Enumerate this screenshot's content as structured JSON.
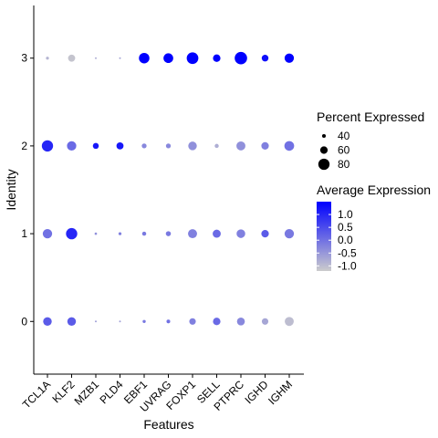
{
  "chart_data": {
    "type": "dotplot",
    "xlabel": "Features",
    "ylabel": "Identity",
    "features": [
      "TCL1A",
      "KLF2",
      "MZB1",
      "PLD4",
      "EBF1",
      "UVRAG",
      "FOXP1",
      "SELL",
      "PTPRC",
      "IGHD",
      "IGHM"
    ],
    "identities": [
      "0",
      "1",
      "2",
      "3"
    ],
    "ylim": [
      -0.6,
      3.6
    ],
    "grid": false,
    "points": [
      {
        "feature": "TCL1A",
        "identity": "0",
        "pct": 66,
        "avg_exp": 0.3
      },
      {
        "feature": "KLF2",
        "identity": "0",
        "pct": 66,
        "avg_exp": 0.3
      },
      {
        "feature": "MZB1",
        "identity": "0",
        "pct": 30,
        "avg_exp": -0.6
      },
      {
        "feature": "PLD4",
        "identity": "0",
        "pct": 30,
        "avg_exp": -0.6
      },
      {
        "feature": "EBF1",
        "identity": "0",
        "pct": 37,
        "avg_exp": -0.1
      },
      {
        "feature": "UVRAG",
        "identity": "0",
        "pct": 40,
        "avg_exp": 0.0
      },
      {
        "feature": "FOXP1",
        "identity": "0",
        "pct": 55,
        "avg_exp": -0.2
      },
      {
        "feature": "SELL",
        "identity": "0",
        "pct": 60,
        "avg_exp": 0.1
      },
      {
        "feature": "PTPRC",
        "identity": "0",
        "pct": 62,
        "avg_exp": -0.3
      },
      {
        "feature": "IGHD",
        "identity": "0",
        "pct": 55,
        "avg_exp": -0.7
      },
      {
        "feature": "IGHM",
        "identity": "0",
        "pct": 68,
        "avg_exp": -1.0
      },
      {
        "feature": "TCL1A",
        "identity": "1",
        "pct": 70,
        "avg_exp": 0.0
      },
      {
        "feature": "KLF2",
        "identity": "1",
        "pct": 80,
        "avg_exp": 1.0
      },
      {
        "feature": "MZB1",
        "identity": "1",
        "pct": 33,
        "avg_exp": -0.4
      },
      {
        "feature": "PLD4",
        "identity": "1",
        "pct": 36,
        "avg_exp": -0.2
      },
      {
        "feature": "EBF1",
        "identity": "1",
        "pct": 42,
        "avg_exp": -0.1
      },
      {
        "feature": "UVRAG",
        "identity": "1",
        "pct": 47,
        "avg_exp": -0.1
      },
      {
        "feature": "FOXP1",
        "identity": "1",
        "pct": 68,
        "avg_exp": -0.2
      },
      {
        "feature": "SELL",
        "identity": "1",
        "pct": 63,
        "avg_exp": 0.1
      },
      {
        "feature": "PTPRC",
        "identity": "1",
        "pct": 66,
        "avg_exp": -0.2
      },
      {
        "feature": "IGHD",
        "identity": "1",
        "pct": 60,
        "avg_exp": 0.3
      },
      {
        "feature": "IGHM",
        "identity": "1",
        "pct": 70,
        "avg_exp": -0.1
      },
      {
        "feature": "TCL1A",
        "identity": "2",
        "pct": 80,
        "avg_exp": 1.0
      },
      {
        "feature": "KLF2",
        "identity": "2",
        "pct": 70,
        "avg_exp": 0.1
      },
      {
        "feature": "MZB1",
        "identity": "2",
        "pct": 52,
        "avg_exp": 1.2
      },
      {
        "feature": "PLD4",
        "identity": "2",
        "pct": 58,
        "avg_exp": 1.2
      },
      {
        "feature": "EBF1",
        "identity": "2",
        "pct": 46,
        "avg_exp": -0.3
      },
      {
        "feature": "UVRAG",
        "identity": "2",
        "pct": 46,
        "avg_exp": -0.3
      },
      {
        "feature": "FOXP1",
        "identity": "2",
        "pct": 66,
        "avg_exp": -0.4
      },
      {
        "feature": "SELL",
        "identity": "2",
        "pct": 42,
        "avg_exp": -0.8
      },
      {
        "feature": "PTPRC",
        "identity": "2",
        "pct": 68,
        "avg_exp": -0.4
      },
      {
        "feature": "IGHD",
        "identity": "2",
        "pct": 60,
        "avg_exp": -0.2
      },
      {
        "feature": "IGHM",
        "identity": "2",
        "pct": 72,
        "avg_exp": 0.0
      },
      {
        "feature": "TCL1A",
        "identity": "3",
        "pct": 36,
        "avg_exp": -0.9
      },
      {
        "feature": "KLF2",
        "identity": "3",
        "pct": 58,
        "avg_exp": -1.1
      },
      {
        "feature": "MZB1",
        "identity": "3",
        "pct": 30,
        "avg_exp": -0.8
      },
      {
        "feature": "PLD4",
        "identity": "3",
        "pct": 30,
        "avg_exp": -0.7
      },
      {
        "feature": "EBF1",
        "identity": "3",
        "pct": 76,
        "avg_exp": 1.5
      },
      {
        "feature": "UVRAG",
        "identity": "3",
        "pct": 72,
        "avg_exp": 1.5
      },
      {
        "feature": "FOXP1",
        "identity": "3",
        "pct": 82,
        "avg_exp": 1.5
      },
      {
        "feature": "SELL",
        "identity": "3",
        "pct": 60,
        "avg_exp": 1.5
      },
      {
        "feature": "PTPRC",
        "identity": "3",
        "pct": 86,
        "avg_exp": 1.5
      },
      {
        "feature": "IGHD",
        "identity": "3",
        "pct": 56,
        "avg_exp": 1.3
      },
      {
        "feature": "IGHM",
        "identity": "3",
        "pct": 70,
        "avg_exp": 1.5
      }
    ],
    "legend_size": {
      "title": "Percent Expressed",
      "breaks": [
        40,
        60,
        80
      ],
      "labels": [
        "40",
        "60",
        "80"
      ]
    },
    "legend_color": {
      "title": "Average Expression",
      "breaks": [
        1.0,
        0.5,
        0.0,
        -0.5,
        -1.0
      ],
      "labels": [
        "1.0",
        "0.5",
        "0.0",
        "-0.5",
        "-1.0"
      ],
      "limits": [
        -1.2,
        1.5
      ],
      "low_color": "#cccccc",
      "high_color": "#0000ff"
    },
    "legend_placement": "right",
    "colors": {
      "axis": "#000000",
      "background": "#ffffff"
    }
  }
}
